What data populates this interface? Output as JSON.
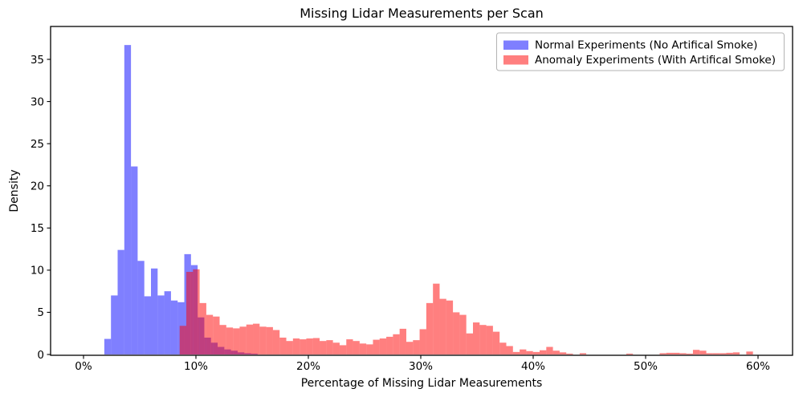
{
  "chart": {
    "title": "Missing Lidar Measurements per Scan",
    "xlabel": "Percentage of Missing Lidar Measurements",
    "ylabel": "Density"
  },
  "chart_data": {
    "type": "histogram",
    "title": "Missing Lidar Measurements per Scan",
    "xlabel": "Percentage of Missing Lidar Measurements",
    "ylabel": "Density",
    "x_unit": "percent",
    "grid": false,
    "bin_width_pct": 0.593,
    "xlim_pct": [
      -2.9,
      63.1
    ],
    "ylim": [
      0,
      38.9
    ],
    "xticks": [
      {
        "value": 0,
        "label": "0%"
      },
      {
        "value": 10,
        "label": "10%"
      },
      {
        "value": 20,
        "label": "20%"
      },
      {
        "value": 30,
        "label": "30%"
      },
      {
        "value": 40,
        "label": "40%"
      },
      {
        "value": 50,
        "label": "50%"
      },
      {
        "value": 60,
        "label": "60%"
      }
    ],
    "yticks": [
      0,
      5,
      10,
      15,
      20,
      25,
      30,
      35
    ],
    "legend": {
      "position": "upper right"
    },
    "overlap_rendered_color": "#bf3f7f",
    "series": [
      {
        "name": "Normal Experiments (No Artifical Smoke)",
        "color": "#0000ff",
        "fill_opacity": 0.5,
        "rendered_color": "#7f7fff",
        "start_pct": 1.85,
        "densities": [
          1.85,
          7.0,
          12.4,
          36.7,
          22.3,
          11.1,
          6.9,
          10.2,
          7.0,
          7.5,
          6.4,
          6.2,
          11.9,
          10.6,
          4.4,
          2.0,
          1.4,
          0.9,
          0.6,
          0.45,
          0.25,
          0.15,
          0.1
        ]
      },
      {
        "name": "Anomaly Experiments (With Artifical Smoke)",
        "color": "#ff0000",
        "fill_opacity": 0.5,
        "rendered_color": "#ff7f7f",
        "start_pct": 8.55,
        "densities": [
          3.4,
          9.8,
          10.1,
          6.1,
          4.7,
          4.5,
          3.5,
          3.2,
          3.1,
          3.3,
          3.55,
          3.65,
          3.3,
          3.25,
          2.9,
          2.0,
          1.6,
          1.9,
          1.8,
          1.9,
          1.95,
          1.6,
          1.7,
          1.4,
          1.1,
          1.8,
          1.6,
          1.3,
          1.2,
          1.75,
          1.9,
          2.1,
          2.4,
          3.05,
          1.5,
          1.7,
          3.0,
          6.1,
          8.4,
          6.6,
          6.4,
          5.0,
          4.7,
          2.5,
          3.8,
          3.5,
          3.4,
          2.7,
          1.4,
          1.0,
          0.3,
          0.6,
          0.4,
          0.3,
          0.5,
          0.9,
          0.45,
          0.25,
          0.1,
          0,
          0.15,
          0,
          0,
          0,
          0,
          0,
          0,
          0.1,
          0,
          0,
          0,
          0,
          0.15,
          0.2,
          0.2,
          0.15,
          0.1,
          0.55,
          0.45,
          0.15,
          0.15,
          0.15,
          0.2,
          0.25,
          0,
          0.35
        ]
      }
    ]
  }
}
